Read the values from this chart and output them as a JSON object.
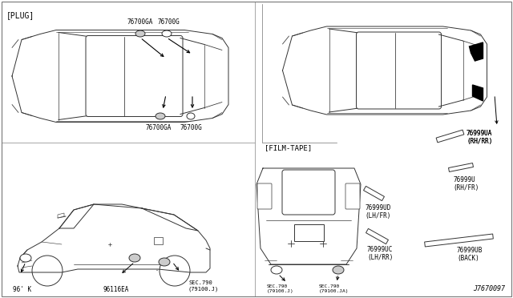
{
  "bg_color": "#ffffff",
  "fig_width": 6.4,
  "fig_height": 3.72,
  "dpi": 100,
  "labels": {
    "plug": "[PLUG]",
    "film_tape": "[FILM-TAPE]",
    "76700GA_top": "76700GA",
    "76700G_top": "76700G",
    "76700GA_bot": "76700GA",
    "76700G_bot": "76700G",
    "96116EA": "96116EA",
    "96k": "96' K",
    "sec790_j": "SEC.790\n(79100.J)",
    "sec790_ja": "SEC.790\n(79100.JA)",
    "76999UA": "76999UA\n(RH/RR)",
    "76999U": "76999U\n(RH/FR)",
    "76999UD": "76999UD\n(LH/FR)",
    "76999UC": "76999UC\n(LH/RR)",
    "76999UB": "76999UB\n(BACK)",
    "diagram_num": "J7670097"
  },
  "car_color": "#333333",
  "divider_color": "#999999"
}
